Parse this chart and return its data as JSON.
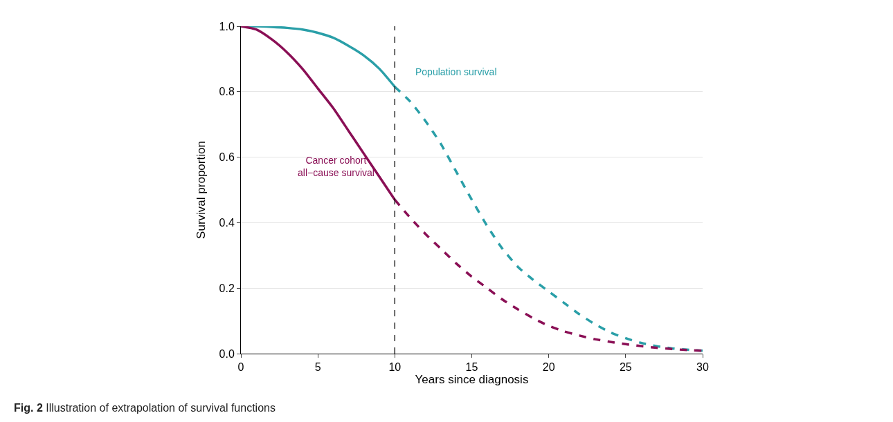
{
  "chart_data": {
    "type": "line",
    "xlabel": "Years since diagnosis",
    "ylabel": "Survival proportion",
    "xlim": [
      0,
      30
    ],
    "ylim": [
      0,
      1
    ],
    "xticks": [
      0,
      5,
      10,
      15,
      20,
      25,
      30
    ],
    "yticks": [
      {
        "value": 0,
        "label": "0.0"
      },
      0.2,
      0.4,
      0.6,
      0.8,
      {
        "value": 1,
        "label": "1.0"
      }
    ],
    "grid": "y",
    "legend": false,
    "marker": "none",
    "series": [
      {
        "name": "Population survival",
        "color": "#2a9fa8",
        "line_style": "solid",
        "x": [
          0,
          1,
          2,
          3,
          4,
          5,
          6,
          7,
          8,
          9,
          10
        ],
        "values": [
          1.0,
          1.0,
          0.998,
          0.995,
          0.99,
          0.98,
          0.965,
          0.94,
          0.91,
          0.87,
          0.815
        ]
      },
      {
        "color": "#2a9fa8",
        "line_style": "dashed",
        "x": [
          10,
          11,
          12,
          13,
          14,
          15,
          16,
          17,
          18,
          19,
          20,
          21,
          22,
          23,
          24,
          25,
          26,
          27,
          28,
          29,
          30
        ],
        "values": [
          0.815,
          0.77,
          0.71,
          0.64,
          0.555,
          0.47,
          0.39,
          0.32,
          0.265,
          0.225,
          0.19,
          0.155,
          0.12,
          0.09,
          0.065,
          0.047,
          0.033,
          0.023,
          0.016,
          0.012,
          0.009
        ]
      },
      {
        "name": "Cancer cohort\nall−cause survival",
        "color": "#8a0f55",
        "line_style": "solid",
        "x": [
          0,
          1,
          2,
          3,
          4,
          5,
          6,
          7,
          8,
          9,
          10
        ],
        "values": [
          1.0,
          0.99,
          0.96,
          0.92,
          0.87,
          0.81,
          0.75,
          0.68,
          0.61,
          0.54,
          0.47
        ]
      },
      {
        "color": "#8a0f55",
        "line_style": "dashed",
        "x": [
          10,
          11,
          12,
          13,
          14,
          15,
          16,
          17,
          18,
          19,
          20,
          21,
          22,
          23,
          24,
          25,
          26,
          27,
          28,
          29,
          30
        ],
        "values": [
          0.47,
          0.415,
          0.365,
          0.32,
          0.275,
          0.235,
          0.2,
          0.165,
          0.135,
          0.108,
          0.085,
          0.068,
          0.055,
          0.044,
          0.036,
          0.029,
          0.023,
          0.018,
          0.014,
          0.011,
          0.009
        ]
      }
    ],
    "ref_lines": [
      {
        "axis": "x",
        "value": 10,
        "color": "#000000",
        "line_style": "dashed"
      }
    ],
    "annotations": [
      "Fig. 2 Illustration of extrapolation of survival functions"
    ]
  }
}
